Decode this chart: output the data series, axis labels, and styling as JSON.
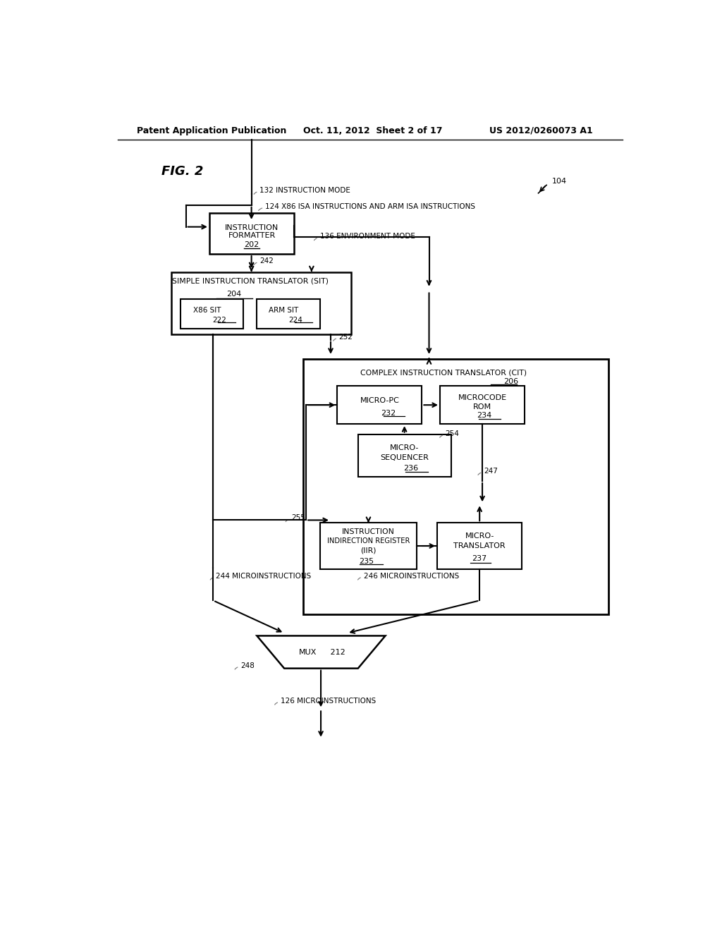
{
  "title_header": "Patent Application Publication",
  "date_header": "Oct. 11, 2012  Sheet 2 of 17",
  "patent_header": "US 2012/0260073 A1",
  "fig_label": "FIG. 2",
  "ref_104": "104",
  "background_color": "#ffffff",
  "annotations": {
    "ref_132": "132 INSTRUCTION MODE",
    "ref_124": "124 X86 ISA INSTRUCTIONS AND ARM ISA INSTRUCTIONS",
    "ref_136": "136 ENVIRONMENT MODE",
    "ref_242": "242",
    "ref_252": "252",
    "ref_254": "254",
    "ref_255": "255",
    "ref_247": "247",
    "ref_244": "244 MICROINSTRUCTIONS",
    "ref_246": "246 MICROINSTRUCTIONS",
    "ref_248": "248",
    "ref_126": "126 MICROINSTRUCTIONS"
  }
}
